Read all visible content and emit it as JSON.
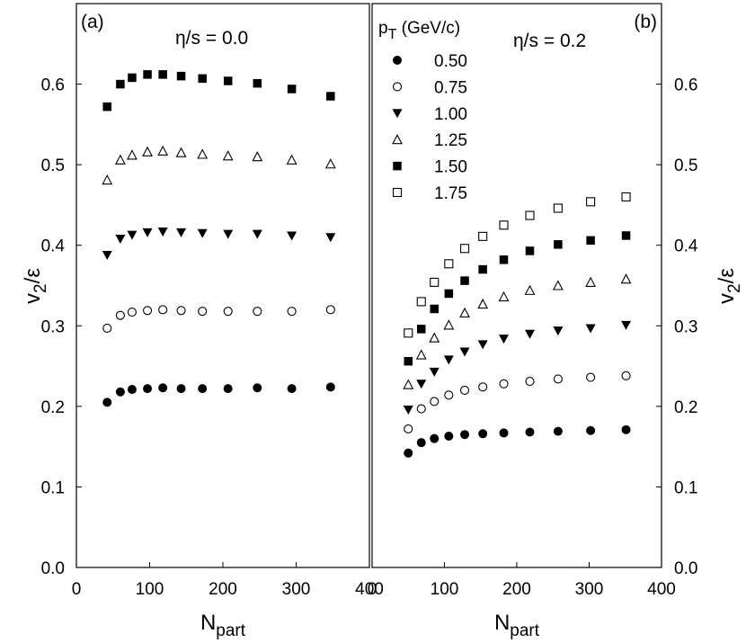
{
  "chart_data": [
    {
      "type": "scatter",
      "panel_label": "(a)",
      "annotation": "η/s = 0.0",
      "xlabel": "N",
      "xlabel_sub": "part",
      "ylabel": "v",
      "ylabel_sub": "2",
      "ylabel_tail": "/ε",
      "xlim": [
        0,
        400
      ],
      "ylim": [
        0,
        0.7
      ],
      "xticks": [
        "0",
        "100",
        "200",
        "300",
        "400"
      ],
      "yticks": [
        "0.0",
        "0.1",
        "0.2",
        "0.3",
        "0.4",
        "0.5",
        "0.6"
      ],
      "y_axis_side": "left",
      "series": [
        {
          "name": "0.50",
          "marker": "filled-circle",
          "x": [
            42,
            60,
            76,
            97,
            118,
            143,
            172,
            207,
            247,
            294,
            347
          ],
          "y": [
            0.205,
            0.218,
            0.221,
            0.222,
            0.223,
            0.222,
            0.222,
            0.222,
            0.223,
            0.222,
            0.224
          ]
        },
        {
          "name": "0.75",
          "marker": "open-circle",
          "x": [
            42,
            60,
            76,
            97,
            118,
            143,
            172,
            207,
            247,
            294,
            347
          ],
          "y": [
            0.297,
            0.313,
            0.317,
            0.319,
            0.32,
            0.319,
            0.318,
            0.318,
            0.318,
            0.318,
            0.32
          ]
        },
        {
          "name": "1.00",
          "marker": "filled-triangle-down",
          "x": [
            42,
            60,
            76,
            97,
            118,
            143,
            172,
            207,
            247,
            294,
            347
          ],
          "y": [
            0.388,
            0.408,
            0.413,
            0.416,
            0.417,
            0.416,
            0.415,
            0.414,
            0.414,
            0.412,
            0.41
          ]
        },
        {
          "name": "1.25",
          "marker": "open-triangle-up",
          "x": [
            42,
            60,
            76,
            97,
            118,
            143,
            172,
            207,
            247,
            294,
            347
          ],
          "y": [
            0.481,
            0.506,
            0.512,
            0.516,
            0.517,
            0.515,
            0.513,
            0.511,
            0.51,
            0.506,
            0.501
          ]
        },
        {
          "name": "1.50",
          "marker": "filled-square",
          "x": [
            42,
            60,
            76,
            97,
            118,
            143,
            172,
            207,
            247,
            294,
            347
          ],
          "y": [
            0.572,
            0.6,
            0.608,
            0.612,
            0.612,
            0.61,
            0.607,
            0.604,
            0.601,
            0.594,
            0.585
          ]
        }
      ]
    },
    {
      "type": "scatter",
      "panel_label": "(b)",
      "annotation": "η/s = 0.2",
      "xlabel": "N",
      "xlabel_sub": "part",
      "ylabel": "v",
      "ylabel_sub": "2",
      "ylabel_tail": "/ε",
      "xlim": [
        0,
        400
      ],
      "ylim": [
        0,
        0.7
      ],
      "xticks": [
        "0",
        "100",
        "200",
        "300",
        "400"
      ],
      "yticks": [
        "0.0",
        "0.1",
        "0.2",
        "0.3",
        "0.4",
        "0.5",
        "0.6"
      ],
      "y_axis_side": "right",
      "legend": {
        "title_main": "p",
        "title_sub": "T",
        "title_tail": " (GeV/c)",
        "placement": "top-left"
      },
      "series": [
        {
          "name": "0.50",
          "marker": "filled-circle",
          "x": [
            50,
            68,
            86,
            106,
            128,
            153,
            182,
            218,
            257,
            302,
            351
          ],
          "y": [
            0.142,
            0.155,
            0.16,
            0.163,
            0.165,
            0.166,
            0.167,
            0.168,
            0.169,
            0.17,
            0.171
          ]
        },
        {
          "name": "0.75",
          "marker": "open-circle",
          "x": [
            50,
            68,
            86,
            106,
            128,
            153,
            182,
            218,
            257,
            302,
            351
          ],
          "y": [
            0.172,
            0.197,
            0.206,
            0.214,
            0.22,
            0.224,
            0.228,
            0.231,
            0.234,
            0.236,
            0.238
          ]
        },
        {
          "name": "1.00",
          "marker": "filled-triangle-down",
          "x": [
            50,
            68,
            86,
            106,
            128,
            153,
            182,
            218,
            257,
            302,
            351
          ],
          "y": [
            0.196,
            0.228,
            0.243,
            0.258,
            0.268,
            0.277,
            0.284,
            0.29,
            0.294,
            0.297,
            0.301
          ]
        },
        {
          "name": "1.25",
          "marker": "open-triangle-up",
          "x": [
            50,
            68,
            86,
            106,
            128,
            153,
            182,
            218,
            257,
            302,
            351
          ],
          "y": [
            0.227,
            0.264,
            0.285,
            0.301,
            0.316,
            0.327,
            0.336,
            0.344,
            0.35,
            0.354,
            0.358
          ]
        },
        {
          "name": "1.50",
          "marker": "filled-square",
          "x": [
            50,
            68,
            86,
            106,
            128,
            153,
            182,
            218,
            257,
            302,
            351
          ],
          "y": [
            0.256,
            0.296,
            0.321,
            0.34,
            0.356,
            0.37,
            0.382,
            0.393,
            0.401,
            0.406,
            0.412
          ]
        },
        {
          "name": "1.75",
          "marker": "open-square",
          "x": [
            50,
            68,
            86,
            106,
            128,
            153,
            182,
            218,
            257,
            302,
            351
          ],
          "y": [
            0.291,
            0.33,
            0.354,
            0.377,
            0.396,
            0.411,
            0.425,
            0.437,
            0.446,
            0.454,
            0.46
          ]
        }
      ]
    }
  ]
}
